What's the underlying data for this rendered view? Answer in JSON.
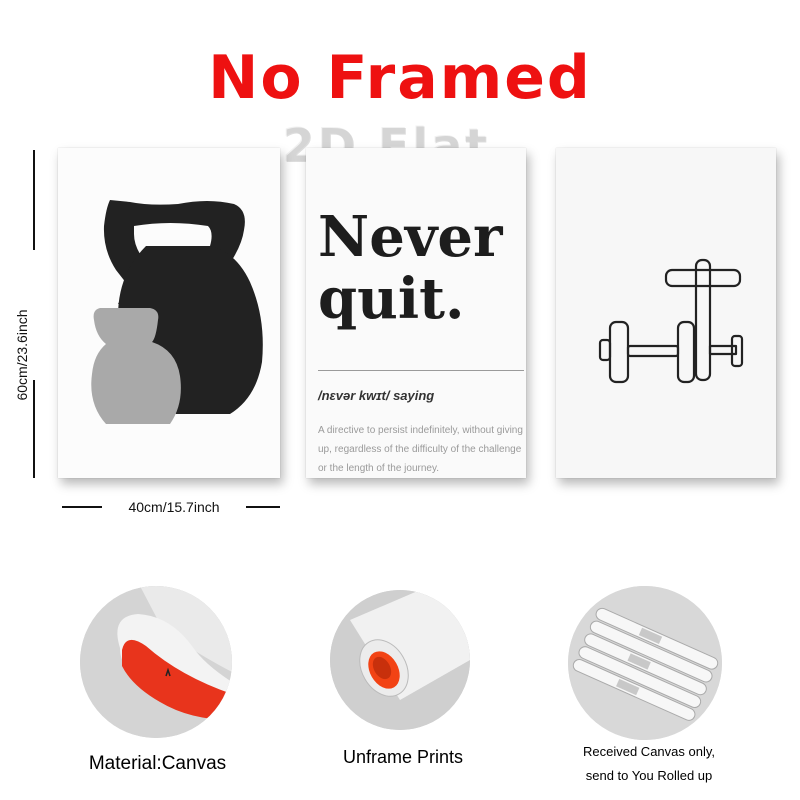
{
  "headline": {
    "text": "No Framed",
    "color": "#ee1111"
  },
  "watermark": {
    "text": "2D Flat"
  },
  "dimensions": {
    "height_label": "60cm/23.6inch",
    "width_label": "40cm/15.7inch"
  },
  "panels": [
    {
      "name": "kettlebell-print",
      "icon": "kettlebell-icon",
      "colors": [
        "#222222",
        "#a9a9a9"
      ]
    },
    {
      "name": "never-quit-print",
      "title_line1": "Never",
      "title_line2": "quit.",
      "phonetic": "/nɛvər kwɪt/ saying",
      "definition": "A directive to persist indefinitely, without giving up, regardless of the difficulty of the challenge or the length of the journey."
    },
    {
      "name": "dumbbell-print",
      "icon": "dumbbell-outline-icon"
    }
  ],
  "features": [
    {
      "caption": "Material:Canvas",
      "icon": "canvas-roll-icon",
      "accent": "#e8341c"
    },
    {
      "caption": "Unframe Prints",
      "icon": "rolled-print-icon",
      "accent": "#f24314"
    },
    {
      "caption_line1": "Received Canvas only,",
      "caption_line2": "send to You Rolled up",
      "icon": "rolled-tubes-icon"
    }
  ]
}
